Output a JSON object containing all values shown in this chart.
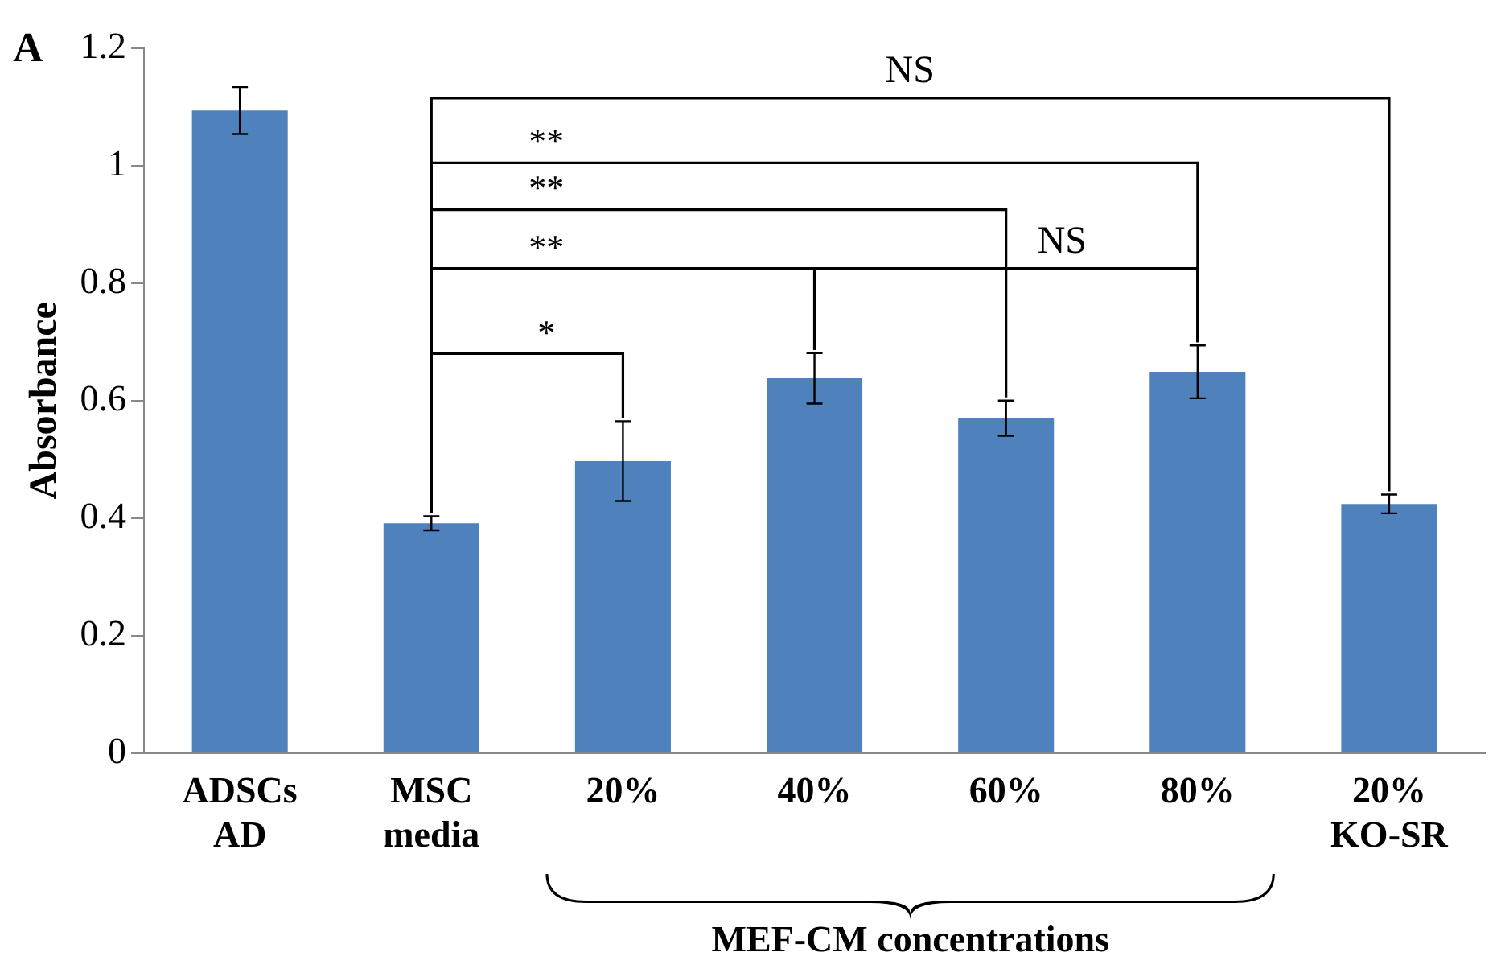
{
  "chart_data": {
    "type": "bar",
    "ylabel": "Absorbance",
    "categories": [
      "ADSCs\nAD",
      "MSC\nmedia",
      "20%",
      "40%",
      "60%",
      "80%",
      "20%\nKO-SR"
    ],
    "values": [
      1.094,
      0.391,
      0.497,
      0.638,
      0.57,
      0.649,
      0.424
    ],
    "errors": [
      0.04,
      0.012,
      0.068,
      0.043,
      0.03,
      0.045,
      0.016
    ],
    "color": "#4f81bd",
    "ylim": [
      0,
      1.2
    ],
    "yticks": [
      0,
      0.2,
      0.4,
      0.6,
      0.8,
      1,
      1.2
    ],
    "grid": false,
    "legend": false,
    "annotations": [
      "A",
      "*",
      "**",
      "**",
      "**",
      "NS",
      "NS",
      "MEF-CM concentrations"
    ]
  }
}
